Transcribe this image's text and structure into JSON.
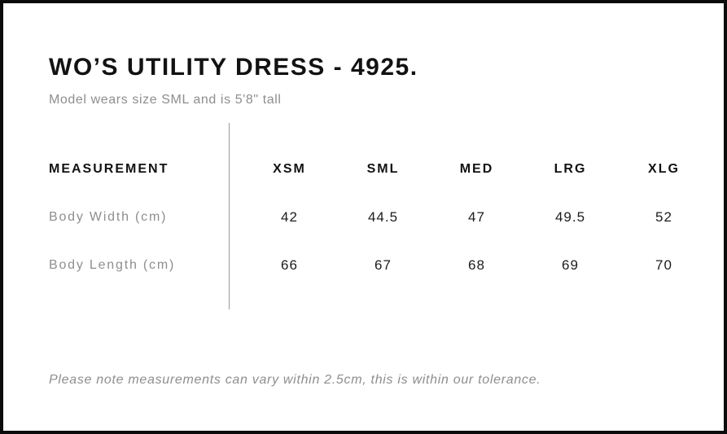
{
  "header": {
    "title": "WO’S UTILITY DRESS - 4925.",
    "subtitle": "Model wears size SML and is 5'8\" tall"
  },
  "chart_data": {
    "type": "table",
    "title": "WO’S UTILITY DRESS - 4925.",
    "measurement_header": "MEASUREMENT",
    "columns": [
      "XSM",
      "SML",
      "MED",
      "LRG",
      "XLG"
    ],
    "rows": [
      {
        "label": "Body Width (cm)",
        "values": [
          42,
          44.5,
          47,
          49.5,
          52
        ]
      },
      {
        "label": "Body Length (cm)",
        "values": [
          66,
          67,
          68,
          69,
          70
        ]
      }
    ]
  },
  "footer": {
    "note": "Please note measurements can vary within 2.5cm, this is within our tolerance."
  },
  "colors": {
    "background": "#ffffff",
    "border": "#0b0b0b",
    "text_primary": "#121212",
    "text_secondary": "#8e8e8e",
    "divider": "#9b9b9b"
  }
}
